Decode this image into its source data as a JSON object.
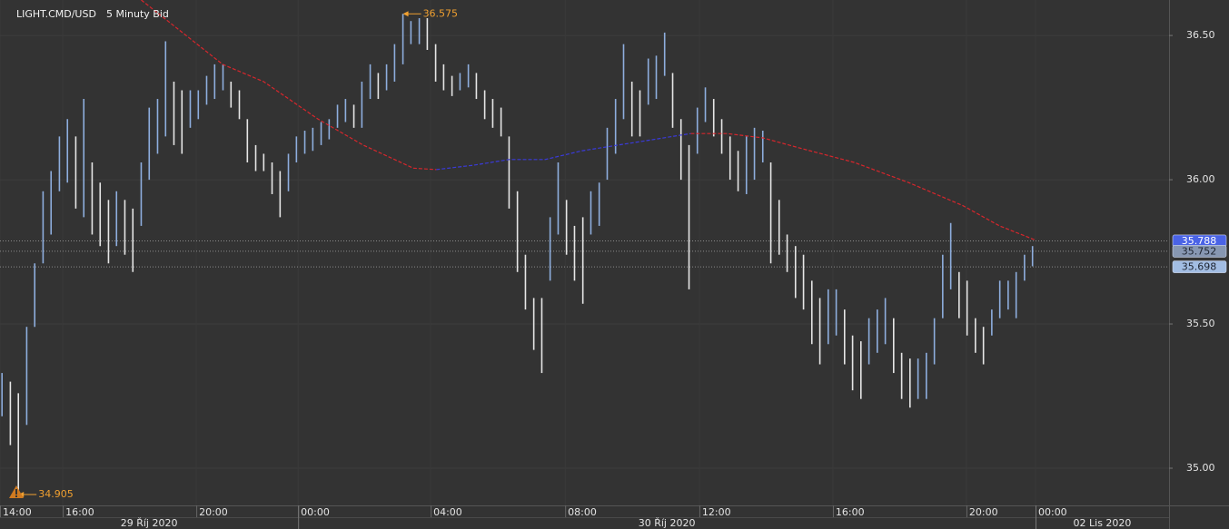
{
  "chart_data": {
    "type": "range_bar",
    "symbol": "LIGHT.CMD/USD",
    "timeframe": "5 Minuty Bid",
    "xlim": [
      0.12,
      35.14
    ],
    "ylim": [
      34.871,
      36.623
    ],
    "yticks": [
      {
        "value": 35,
        "label": "35.00"
      },
      {
        "value": 35.5,
        "label": "35.50"
      },
      {
        "value": 36,
        "label": "36.00"
      },
      {
        "value": 36.5,
        "label": "36.50"
      }
    ],
    "xticks": [
      {
        "value": 0.12,
        "label": "14:00"
      },
      {
        "value": 2,
        "label": "16:00"
      },
      {
        "value": 6,
        "label": "20:00"
      },
      {
        "value": 9.05,
        "label": "00:00"
      },
      {
        "value": 13.02,
        "label": "04:00"
      },
      {
        "value": 17.05,
        "label": "08:00"
      },
      {
        "value": 21.07,
        "label": "12:00"
      },
      {
        "value": 25.07,
        "label": "16:00"
      },
      {
        "value": 29.07,
        "label": "20:00"
      },
      {
        "value": 31.14,
        "label": "00:00"
      }
    ],
    "days": [
      "29 Říj 2020",
      "30 Říj 2020",
      "02 Lis 2020"
    ],
    "day_boundaries": [
      9.05,
      31.14
    ],
    "grid": true,
    "up_color": "#8eaede",
    "down_color": "#e6e6e6",
    "x": [
      0.18,
      0.43,
      0.67,
      0.92,
      1.16,
      1.41,
      1.65,
      1.9,
      2.14,
      2.39,
      2.63,
      2.88,
      3.12,
      3.37,
      3.61,
      3.86,
      4.1,
      4.35,
      4.59,
      4.84,
      5.08,
      5.33,
      5.57,
      5.82,
      6.06,
      6.31,
      6.55,
      6.8,
      7.04,
      7.29,
      7.53,
      7.78,
      8.02,
      8.27,
      8.51,
      8.76,
      9,
      9.25,
      9.49,
      9.74,
      9.98,
      10.23,
      10.47,
      10.72,
      10.96,
      11.21,
      11.45,
      11.7,
      11.94,
      12.19,
      12.43,
      12.68,
      12.92,
      13.17,
      13.41,
      13.66,
      13.9,
      14.15,
      14.39,
      14.64,
      14.88,
      15.13,
      15.37,
      15.62,
      15.86,
      16.11,
      16.35,
      16.6,
      16.84,
      17.09,
      17.33,
      17.58,
      17.82,
      18.07,
      18.31,
      18.56,
      18.8,
      19.05,
      19.29,
      19.54,
      19.78,
      20.03,
      20.27,
      20.52,
      20.76,
      21.01,
      21.25,
      21.5,
      21.74,
      21.99,
      22.23,
      22.48,
      22.72,
      22.97,
      23.21,
      23.46,
      23.7,
      23.95,
      24.19,
      24.44,
      24.68,
      24.93,
      25.17,
      25.42,
      25.66,
      25.91,
      26.15,
      26.4,
      26.64,
      26.89,
      27.13,
      27.38,
      27.62,
      27.87,
      28.11,
      28.36,
      28.6,
      28.85,
      29.09,
      29.34,
      29.58,
      29.83,
      30.07,
      30.32,
      30.56,
      30.81,
      31.05
    ],
    "high": [
      35.33,
      35.3,
      35.26,
      35.49,
      35.71,
      35.96,
      36.03,
      36.15,
      36.21,
      36.15,
      36.28,
      36.06,
      35.99,
      35.93,
      35.96,
      35.93,
      35.9,
      36.06,
      36.25,
      36.28,
      36.48,
      36.34,
      36.31,
      36.31,
      36.31,
      36.36,
      36.4,
      36.4,
      36.34,
      36.31,
      36.21,
      36.12,
      36.09,
      36.06,
      36.03,
      36.09,
      36.15,
      36.17,
      36.18,
      36.2,
      36.21,
      36.26,
      36.28,
      36.26,
      36.34,
      36.4,
      36.37,
      36.4,
      36.47,
      36.575,
      36.55,
      36.56,
      36.56,
      36.47,
      36.4,
      36.36,
      36.37,
      36.4,
      36.37,
      36.31,
      36.28,
      36.25,
      36.15,
      35.96,
      35.74,
      35.59,
      35.59,
      35.87,
      36.06,
      35.93,
      35.84,
      35.87,
      35.96,
      35.99,
      36.18,
      36.28,
      36.47,
      36.34,
      36.31,
      36.42,
      36.43,
      36.51,
      36.37,
      36.21,
      36.12,
      36.25,
      36.32,
      36.28,
      36.21,
      36.15,
      36.1,
      36.15,
      36.18,
      36.17,
      36.06,
      35.93,
      35.81,
      35.77,
      35.74,
      35.65,
      35.59,
      35.62,
      35.62,
      35.55,
      35.46,
      35.44,
      35.52,
      35.55,
      35.59,
      35.52,
      35.4,
      35.38,
      35.38,
      35.4,
      35.52,
      35.74,
      35.85,
      35.68,
      35.65,
      35.52,
      35.49,
      35.55,
      35.65,
      35.65,
      35.68,
      35.74,
      35.77
    ],
    "low": [
      35.18,
      35.08,
      34.905,
      35.15,
      35.49,
      35.71,
      35.81,
      35.96,
      35.99,
      35.9,
      35.87,
      35.81,
      35.77,
      35.71,
      35.77,
      35.74,
      35.68,
      35.84,
      36.0,
      36.09,
      36.15,
      36.12,
      36.09,
      36.18,
      36.21,
      36.26,
      36.28,
      36.31,
      36.25,
      36.21,
      36.06,
      36.03,
      36.03,
      35.95,
      35.87,
      35.96,
      36.06,
      36.09,
      36.1,
      36.12,
      36.14,
      36.18,
      36.2,
      36.18,
      36.18,
      36.28,
      36.28,
      36.31,
      36.34,
      36.4,
      36.47,
      36.47,
      36.45,
      36.34,
      36.31,
      36.29,
      36.31,
      36.32,
      36.28,
      36.21,
      36.18,
      36.15,
      35.9,
      35.68,
      35.55,
      35.41,
      35.33,
      35.65,
      35.81,
      35.74,
      35.65,
      35.57,
      35.81,
      35.84,
      36.0,
      36.09,
      36.21,
      36.15,
      36.15,
      36.26,
      36.28,
      36.36,
      36.18,
      36.0,
      35.62,
      36.09,
      36.2,
      36.15,
      36.09,
      36.0,
      35.96,
      35.95,
      36.0,
      36.06,
      35.71,
      35.74,
      35.68,
      35.59,
      35.55,
      35.43,
      35.36,
      35.43,
      35.46,
      35.36,
      35.27,
      35.24,
      35.36,
      35.4,
      35.43,
      35.33,
      35.24,
      35.21,
      35.24,
      35.24,
      35.36,
      35.52,
      35.62,
      35.52,
      35.46,
      35.4,
      35.36,
      35.46,
      35.52,
      35.55,
      35.52,
      35.65,
      35.7
    ],
    "lines": [
      {
        "color": "#d8262c",
        "x": [
          4.35,
          6.79,
          8.02,
          9.65,
          11.0,
          12.5,
          13.19
        ],
        "values": [
          36.623,
          36.4,
          36.34,
          36.21,
          36.12,
          36.04,
          36.035
        ]
      },
      {
        "color": "#3a3ad8",
        "x": [
          13.19,
          14.28,
          15.37,
          16.45,
          17.54,
          18.63,
          19.72,
          20.81
        ],
        "values": [
          36.035,
          36.05,
          36.07,
          36.07,
          36.1,
          36.12,
          36.14,
          36.16
        ]
      },
      {
        "color": "#d8262c",
        "x": [
          20.81,
          21.9,
          22.98,
          24.07,
          25.71,
          27.34,
          28.97,
          30.06,
          31.15
        ],
        "values": [
          36.16,
          36.16,
          36.145,
          36.11,
          36.06,
          35.99,
          35.91,
          35.84,
          35.79
        ]
      }
    ],
    "annotations": [
      {
        "x": 12.19,
        "value": 36.575
      },
      {
        "x": 0.67,
        "value": 34.905
      }
    ],
    "annotation_color": "#f0a030",
    "price_levels": [
      {
        "value": 35.788,
        "color": "#4a63e6",
        "text_color": "#ffffff"
      },
      {
        "value": 35.752,
        "color": "#8797b2",
        "text_color": "#1e2430"
      },
      {
        "value": 35.698,
        "color": "#a2bde3",
        "text_color": "#1e2430"
      }
    ]
  }
}
